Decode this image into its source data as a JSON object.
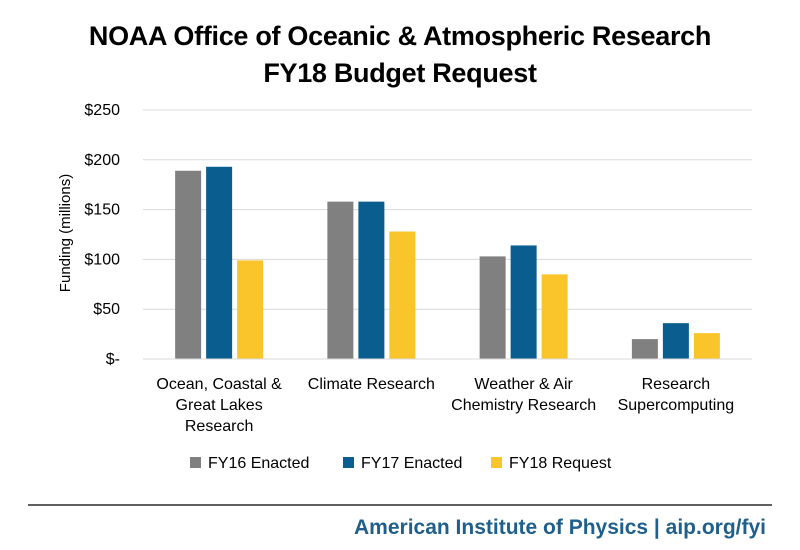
{
  "chart_data": {
    "type": "bar",
    "title": "NOAA Office of Oceanic & Atmospheric Research",
    "subtitle": "FY18 Budget Request",
    "ylabel": "Funding (millions)",
    "xlabel": "",
    "ylim": [
      0,
      250
    ],
    "yticks": [
      0,
      50,
      100,
      150,
      200,
      250
    ],
    "ytick_labels": [
      "$-",
      "$50",
      "$100",
      "$150",
      "$200",
      "$250"
    ],
    "grid": true,
    "legend_position": "bottom",
    "categories": [
      [
        "Ocean, Coastal &",
        "Great Lakes",
        "Research"
      ],
      [
        "Climate Research"
      ],
      [
        "Weather & Air",
        "Chemistry Research"
      ],
      [
        "Research",
        "Supercomputing"
      ]
    ],
    "series": [
      {
        "name": "FY16 Enacted",
        "color": "#808080",
        "values": [
          189,
          158,
          103,
          20
        ]
      },
      {
        "name": "FY17 Enacted",
        "color": "#0a5e8f",
        "values": [
          193,
          158,
          114,
          36
        ]
      },
      {
        "name": "FY18 Request",
        "color": "#fac52a",
        "values": [
          99,
          128,
          85,
          26
        ]
      }
    ]
  },
  "footer": "American Institute of Physics | aip.org/fyi"
}
